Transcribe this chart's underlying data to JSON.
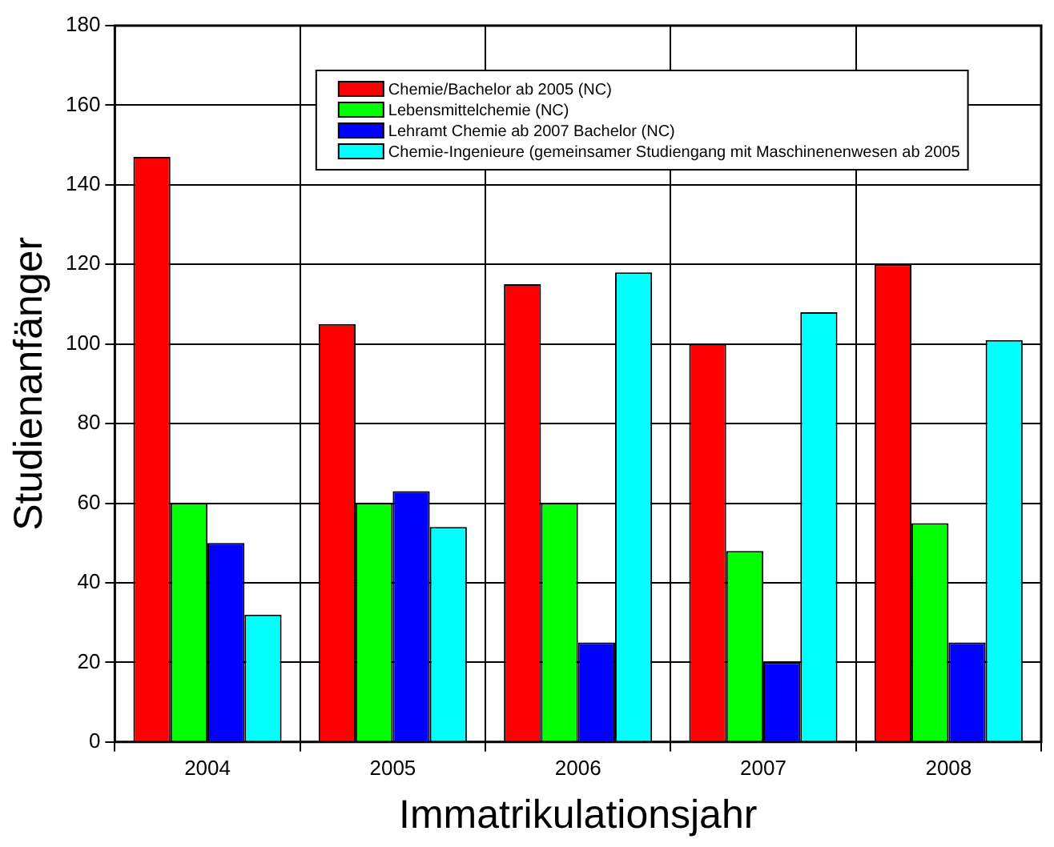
{
  "chart_data": {
    "type": "bar",
    "xlabel": "Immatrikulationsjahr",
    "ylabel": "Studienanfänger",
    "categories": [
      "2004",
      "2005",
      "2006",
      "2007",
      "2008"
    ],
    "series": [
      {
        "name": "Chemie/Bachelor ab 2005 (NC)",
        "color": "#ff0000",
        "values": [
          147,
          105,
          115,
          100,
          120
        ]
      },
      {
        "name": "Lebensmittelchemie (NC)",
        "color": "#00ff00",
        "values": [
          60,
          60,
          60,
          48,
          55
        ]
      },
      {
        "name": "Lehramt Chemie ab 2007 Bachelor (NC)",
        "color": "#0000ff",
        "values": [
          50,
          63,
          25,
          20,
          25
        ]
      },
      {
        "name": "Chemie-Ingenieure (gemeinsamer Studiengang mit Maschinenenwesen ab 2005",
        "color": "#00ffff",
        "values": [
          32,
          54,
          118,
          108,
          101
        ]
      }
    ],
    "ylim": [
      0,
      180
    ],
    "yticks": [
      0,
      20,
      40,
      60,
      80,
      100,
      120,
      140,
      160,
      180
    ],
    "grid": true,
    "legend": "top"
  }
}
